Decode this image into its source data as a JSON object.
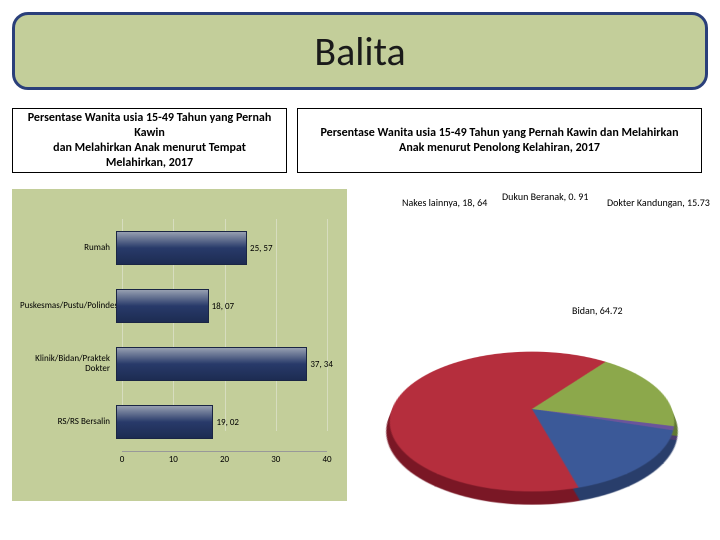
{
  "title": "Balita",
  "left_panel_title": "Persentase Wanita usia 15-49 Tahun yang Pernah Kawin\ndan Melahirkan Anak menurut Tempat Melahirkan, 2017",
  "right_panel_title": "Persentase Wanita usia 15-49 Tahun yang Pernah Kawin dan Melahirkan Anak menurut Penolong Kelahiran, 2017",
  "bar_chart": {
    "type": "bar-horizontal",
    "background_color": "#c3ce9a",
    "bar_color": "#2c3e70",
    "grid_color": "#d7ddbf",
    "label_fontsize": 9,
    "xlim": [
      0,
      40
    ],
    "xtick_step": 10,
    "xticks": [
      {
        "pos": 0,
        "lab": "0"
      },
      {
        "pos": 10,
        "lab": "10"
      },
      {
        "pos": 20,
        "lab": "20"
      },
      {
        "pos": 30,
        "lab": "30"
      },
      {
        "pos": 40,
        "lab": "40"
      }
    ],
    "categories": [
      {
        "label": "Rumah",
        "value": 25.57,
        "value_label": "25, 57"
      },
      {
        "label": "Puskesmas/Pustu/Polindes",
        "value": 18.07,
        "value_label": "18, 07"
      },
      {
        "label": "Klinik/Bidan/Praktek Dokter",
        "value": 37.34,
        "value_label": "37, 34"
      },
      {
        "label": "RS/RS Bersalin",
        "value": 19.02,
        "value_label": "19, 02"
      }
    ]
  },
  "pie_chart": {
    "type": "pie-3d",
    "slices": [
      {
        "label": "Bidan",
        "value": 64.72,
        "value_label": "Bidan, 64.72",
        "color": "#b52e3d",
        "side_color": "#7a1725"
      },
      {
        "label": "Nakes lainnya",
        "value": 18.64,
        "value_label": "Nakes lainnya, 18, 64",
        "color": "#8ca84b",
        "side_color": "#617833"
      },
      {
        "label": "Dukun Beranak",
        "value": 0.91,
        "value_label": "Dukun Beranak, 0. 91",
        "color": "#6a559b",
        "side_color": "#4b3c70"
      },
      {
        "label": "Dokter Kandungan",
        "value": 15.73,
        "value_label": "Dokter Kandungan, 15.73",
        "color": "#3b5998",
        "side_color": "#293e6b"
      }
    ],
    "label_fontsize": 10,
    "title_fontsize": 12
  },
  "colors": {
    "title_border": "#2a3f7a",
    "title_bg": "#c3ce9a",
    "panel_border": "#000000"
  }
}
